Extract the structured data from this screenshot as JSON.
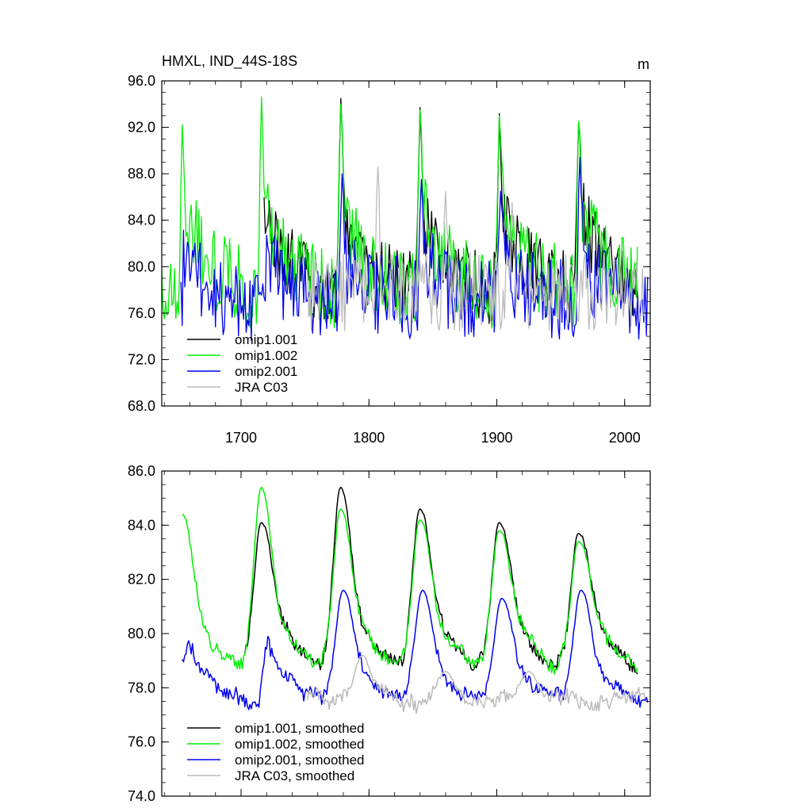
{
  "chart_data": [
    {
      "type": "line",
      "title": "HMXL, IND_44S-18S",
      "units": "m",
      "xlim": [
        1638,
        2020
      ],
      "ylim": [
        68,
        96
      ],
      "x_ticks": [
        1700,
        1800,
        1900,
        2000
      ],
      "x_tick_labels": [
        "1700",
        "1800",
        "1900",
        "2000"
      ],
      "y_ticks": [
        68,
        72,
        76,
        80,
        84,
        88,
        92,
        96
      ],
      "y_tick_labels": [
        "68.0",
        "72.0",
        "76.0",
        "80.0",
        "84.0",
        "88.0",
        "92.0",
        "96.0"
      ],
      "legend_position": "bottom-left",
      "series": [
        {
          "name": "omip1.001",
          "color": "#000000",
          "start": 1718,
          "end": 2010,
          "period": 62,
          "base": 80.5,
          "amp": 8,
          "noise": 3.2,
          "peaks": [
            [
              1778,
              94.5
            ],
            [
              1840,
              93.7
            ],
            [
              1902,
              93.2
            ],
            [
              1964,
              92.5
            ]
          ]
        },
        {
          "name": "omip1.002",
          "color": "#00ee00",
          "start": 1638,
          "end": 2010,
          "period": 62,
          "base": 80.5,
          "amp": 8,
          "noise": 3.5,
          "peaks": [
            [
              1654,
              92.2
            ],
            [
              1716,
              94.6
            ],
            [
              1778,
              94.0
            ],
            [
              1840,
              93.5
            ],
            [
              1902,
              93.0
            ],
            [
              1964,
              92.5
            ]
          ]
        },
        {
          "name": "omip2.001",
          "color": "#0000ee",
          "start": 1653,
          "end": 2018,
          "period": 62,
          "base": 78.3,
          "amp": 4,
          "noise": 3.6,
          "peaks": [
            [
              1779,
              88.0
            ],
            [
              1841,
              87.5
            ],
            [
              1903,
              86.5
            ],
            [
              1965,
              89.4
            ]
          ]
        },
        {
          "name": "JRA C03",
          "color": "#bbbbbb",
          "start": 1752,
          "end": 2016,
          "period": 0,
          "base": 77.8,
          "amp": 0,
          "noise": 3.4,
          "peaks": [
            [
              1807,
              88.6
            ],
            [
              1860,
              86.5
            ],
            [
              1912,
              85.5
            ]
          ]
        }
      ]
    },
    {
      "type": "line",
      "title": "",
      "xlim": [
        1638,
        2020
      ],
      "ylim": [
        74,
        86
      ],
      "x_ticks": [
        1700,
        1800,
        1900,
        2000
      ],
      "y_ticks": [
        74,
        76,
        78,
        80,
        82,
        84,
        86
      ],
      "y_tick_labels": [
        "74.0",
        "76.0",
        "78.0",
        "80.0",
        "82.0",
        "84.0",
        "86.0"
      ],
      "legend_position": "bottom-left",
      "series": [
        {
          "name": "omip1.001, smoothed",
          "color": "#000000",
          "start": 1703,
          "end": 2010,
          "period": 62,
          "base": 80.0,
          "amp": 5.0,
          "noise": 0.35,
          "peaks": [
            [
              1716,
              84.1
            ],
            [
              1778,
              85.4
            ],
            [
              1840,
              84.6
            ],
            [
              1902,
              84.1
            ],
            [
              1964,
              83.7
            ]
          ]
        },
        {
          "name": "omip1.002, smoothed",
          "color": "#00ee00",
          "start": 1654,
          "end": 2010,
          "period": 62,
          "base": 80.0,
          "amp": 4.8,
          "noise": 0.35,
          "peaks": [
            [
              1654,
              84.4
            ],
            [
              1716,
              85.4
            ],
            [
              1778,
              84.6
            ],
            [
              1840,
              84.2
            ],
            [
              1902,
              83.8
            ],
            [
              1964,
              83.4
            ]
          ]
        },
        {
          "name": "omip2.001, smoothed",
          "color": "#0000ee",
          "start": 1654,
          "end": 2018,
          "period": 62,
          "base": 78.3,
          "amp": 2.8,
          "noise": 0.45,
          "peaks": [
            [
              1780,
              81.6
            ],
            [
              1842,
              81.6
            ],
            [
              1904,
              81.3
            ],
            [
              1966,
              81.6
            ]
          ]
        },
        {
          "name": "JRA C03, smoothed",
          "color": "#bbbbbb",
          "start": 1752,
          "end": 2016,
          "period": 0,
          "base": 77.6,
          "amp": 0,
          "noise": 0.55,
          "peaks": [
            [
              1795,
              79.2
            ],
            [
              1860,
              78.6
            ],
            [
              1925,
              78.6
            ]
          ]
        }
      ]
    }
  ]
}
